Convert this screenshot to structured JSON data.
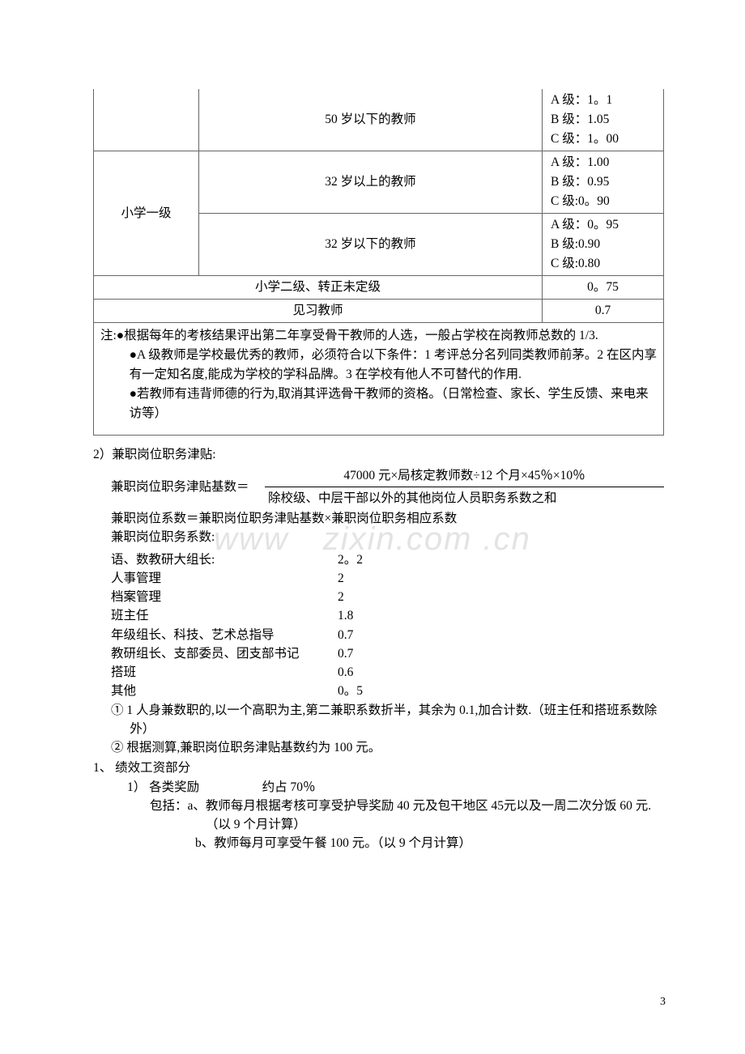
{
  "table": {
    "row1_age": "50 岁以下的教师",
    "row1_levels": "A 级：1。1\nB 级：1.05\nC 级：1。00",
    "row2_title": "小学一级",
    "row2a_age": "32 岁以上的教师",
    "row2a_levels": "A 级：1.00\nB 级：0.95\nC 级:0。90",
    "row2b_age": "32 岁以下的教师",
    "row2b_levels": "A 级：0。95\nB 级:0.90\nC 级:0.80",
    "row3_title": "小学二级、转正未定级",
    "row3_val": "0。75",
    "row4_title": "见习教师",
    "row4_val": "0.7",
    "note1": "注:●根据每年的考核结果评出第二年享受骨干教师的人选，一般占学校在岗教师总数的 1/3.",
    "note2": "●A 级教师是学校最优秀的教师，必须符合以下条件：1 考评总分名列同类教师前茅。2 在区内享有一定知名度,能成为学校的学科品牌。3 在学校有他人不可替代的作用.",
    "note3": "●若教师有违背师德的行为,取消其评选骨干教师的资格。（日常检查、家长、学生反馈、来电来访等）"
  },
  "section2": {
    "title": "2）兼职岗位职务津贴:",
    "formula_label": "兼职岗位职务津贴基数＝",
    "formula_top": "47000 元×局核定教师数÷12 个月×45％×10％",
    "formula_bot": "除校级、中层干部以外的其他岗位人员职务系数之和",
    "line2": "兼职岗位系数＝兼职岗位职务津贴基数×兼职岗位职务相应系数",
    "line3": "兼职岗位职务系数:",
    "coeffs": [
      {
        "label": "语、数教研大组长:",
        "val": "2。2"
      },
      {
        "label": "人事管理",
        "val": "2"
      },
      {
        "label": "档案管理",
        "val": "2"
      },
      {
        "label": "班主任",
        "val": "1.8"
      },
      {
        "label": "年级组长、科技、艺术总指导",
        "val": "0.7"
      },
      {
        "label": "教研组长、支部委员、团支部书记",
        "val": "0.7"
      },
      {
        "label": "搭班",
        "val": "0.6"
      },
      {
        "label": "其他",
        "val": "0。5"
      }
    ],
    "circ1": "① 1 人身兼数职的,以一个高职为主,第二兼职系数折半，其余为 0.1,加合计数.（班主任和搭班系数除外）",
    "circ2": "② 根据测算,兼职岗位职务津贴基数约为 100 元。"
  },
  "section3": {
    "title": "1、 绩效工资部分",
    "sub1": "1） 各类奖励     约占 70％",
    "inc_label": "包括：a、",
    "inc_a": "教师每月根据考核可享受护导奖励 40 元及包干地区 45元以及一周二次分饭 60 元.（以 9 个月计算）",
    "inc_b_label": "b、",
    "inc_b": "教师每月可享受午餐 100 元。（以 9 个月计算）"
  },
  "watermark": "www zixin.com .cn",
  "page_num": "3"
}
